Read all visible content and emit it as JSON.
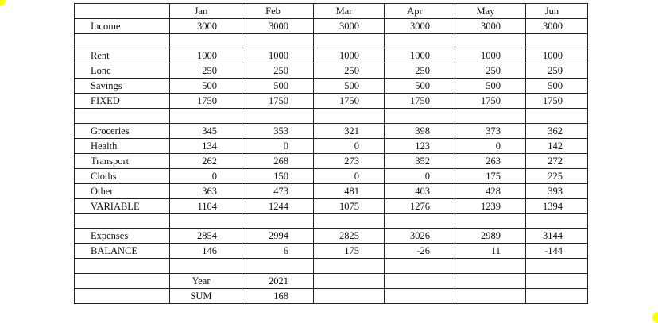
{
  "months": [
    "Jan",
    "Feb",
    "Mar",
    "Apr",
    "May",
    "Jun"
  ],
  "rows": [
    {
      "label": "Income",
      "values": [
        "3000",
        "3000",
        "3000",
        "3000",
        "3000",
        "3000"
      ]
    },
    {
      "label": "",
      "values": [
        "",
        "",
        "",
        "",
        "",
        ""
      ]
    },
    {
      "label": "Rent",
      "values": [
        "1000",
        "1000",
        "1000",
        "1000",
        "1000",
        "1000"
      ]
    },
    {
      "label": "Lone",
      "values": [
        "250",
        "250",
        "250",
        "250",
        "250",
        "250"
      ]
    },
    {
      "label": "Savings",
      "values": [
        "500",
        "500",
        "500",
        "500",
        "500",
        "500"
      ]
    },
    {
      "label": "FIXED",
      "values": [
        "1750",
        "1750",
        "1750",
        "1750",
        "1750",
        "1750"
      ]
    },
    {
      "label": "",
      "values": [
        "",
        "",
        "",
        "",
        "",
        ""
      ]
    },
    {
      "label": "Groceries",
      "values": [
        "345",
        "353",
        "321",
        "398",
        "373",
        "362"
      ]
    },
    {
      "label": "Health",
      "values": [
        "134",
        "0",
        "0",
        "123",
        "0",
        "142"
      ]
    },
    {
      "label": "Transport",
      "values": [
        "262",
        "268",
        "273",
        "352",
        "263",
        "272"
      ]
    },
    {
      "label": "Cloths",
      "values": [
        "0",
        "150",
        "0",
        "0",
        "175",
        "225"
      ]
    },
    {
      "label": "Other",
      "values": [
        "363",
        "473",
        "481",
        "403",
        "428",
        "393"
      ]
    },
    {
      "label": "VARIABLE",
      "values": [
        "1104",
        "1244",
        "1075",
        "1276",
        "1239",
        "1394"
      ]
    },
    {
      "label": "",
      "values": [
        "",
        "",
        "",
        "",
        "",
        ""
      ]
    },
    {
      "label": "Expenses",
      "values": [
        "2854",
        "2994",
        "2825",
        "3026",
        "2989",
        "3144"
      ]
    },
    {
      "label": "BALANCE",
      "values": [
        "146",
        "6",
        "175",
        "-26",
        "11",
        "-144"
      ]
    },
    {
      "label": "",
      "values": [
        "",
        "",
        "",
        "",
        "",
        ""
      ]
    }
  ],
  "summary": [
    {
      "label": "Year",
      "value": "2021"
    },
    {
      "label": "SUM",
      "value": "168"
    }
  ],
  "colors": {
    "corner_accent": "#ffff00",
    "grid": "#222222"
  }
}
